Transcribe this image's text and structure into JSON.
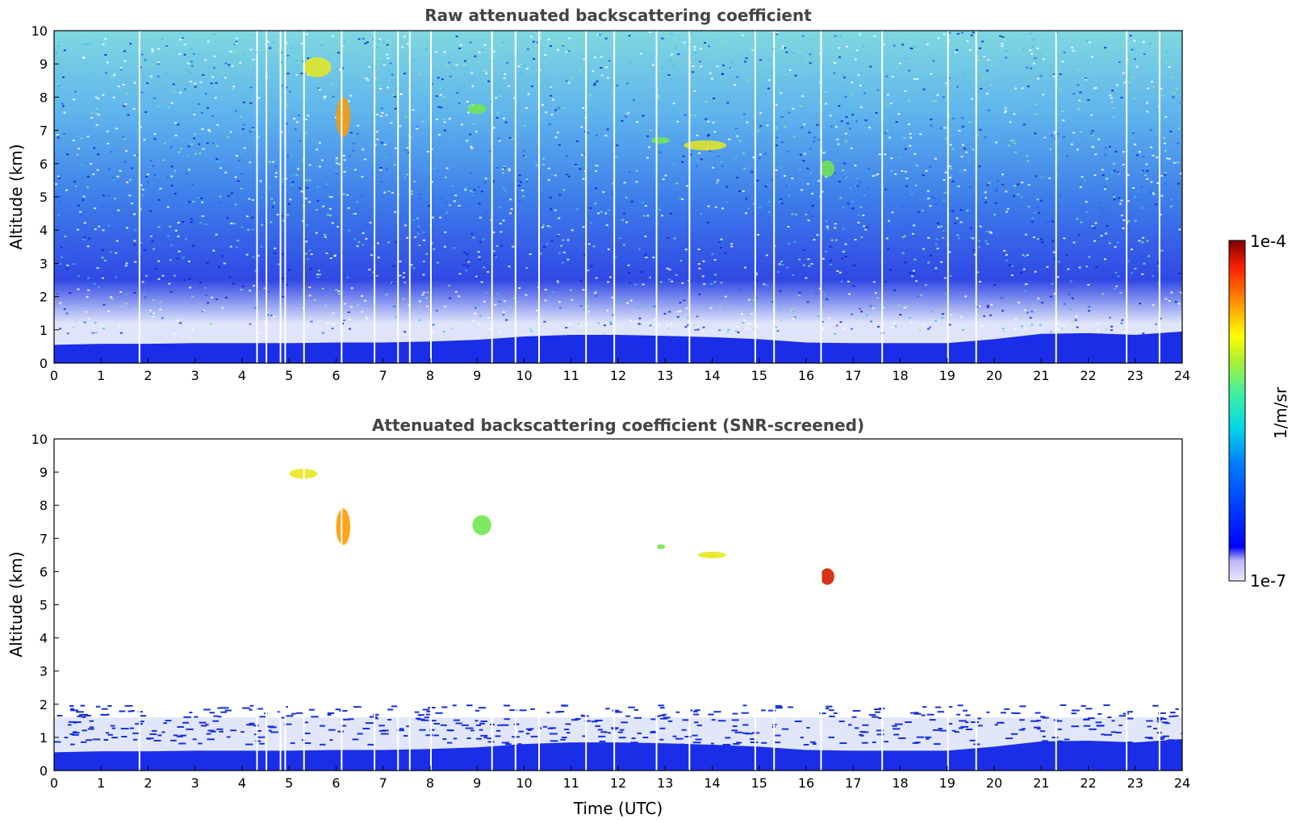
{
  "chart_data": [
    {
      "type": "heatmap",
      "title": "Raw attenuated backscattering coefficient",
      "xlabel": "",
      "ylabel": "Altitude (km)",
      "xlim": [
        0,
        24
      ],
      "ylim": [
        0,
        10
      ],
      "xticks": [
        "0",
        "1",
        "2",
        "3",
        "4",
        "5",
        "6",
        "7",
        "8",
        "9",
        "10",
        "11",
        "12",
        "13",
        "14",
        "15",
        "16",
        "17",
        "18",
        "19",
        "20",
        "21",
        "22",
        "23",
        "24"
      ],
      "yticks": [
        "0",
        "1",
        "2",
        "3",
        "4",
        "5",
        "6",
        "7",
        "8",
        "9",
        "10"
      ],
      "boundary_layer_top_km": [
        [
          0,
          0.55
        ],
        [
          1,
          0.58
        ],
        [
          2,
          0.58
        ],
        [
          3,
          0.6
        ],
        [
          4,
          0.6
        ],
        [
          5,
          0.6
        ],
        [
          6,
          0.62
        ],
        [
          7,
          0.62
        ],
        [
          8,
          0.65
        ],
        [
          9,
          0.7
        ],
        [
          10,
          0.8
        ],
        [
          11,
          0.85
        ],
        [
          12,
          0.85
        ],
        [
          13,
          0.82
        ],
        [
          14,
          0.78
        ],
        [
          15,
          0.72
        ],
        [
          16,
          0.62
        ],
        [
          17,
          0.6
        ],
        [
          18,
          0.6
        ],
        [
          19,
          0.6
        ],
        [
          20,
          0.72
        ],
        [
          21,
          0.88
        ],
        [
          22,
          0.9
        ],
        [
          23,
          0.85
        ],
        [
          24,
          0.95
        ]
      ],
      "cloud_features": [
        {
          "t0": 5.3,
          "t1": 5.9,
          "z0": 8.6,
          "z1": 9.2,
          "level": "yellow"
        },
        {
          "t0": 6.0,
          "t1": 6.3,
          "z0": 6.8,
          "z1": 8.0,
          "level": "orange"
        },
        {
          "t0": 8.8,
          "t1": 9.2,
          "z0": 7.5,
          "z1": 7.8,
          "level": "green"
        },
        {
          "t0": 12.7,
          "t1": 13.1,
          "z0": 6.6,
          "z1": 6.8,
          "level": "green"
        },
        {
          "t0": 13.4,
          "t1": 14.3,
          "z0": 6.4,
          "z1": 6.7,
          "level": "yellow"
        },
        {
          "t0": 16.3,
          "t1": 16.6,
          "z0": 5.6,
          "z1": 6.1,
          "level": "green"
        }
      ],
      "data_gaps_utc": [
        1.8,
        4.3,
        4.5,
        4.8,
        4.9,
        5.3,
        6.1,
        6.8,
        7.3,
        7.55,
        8.0,
        9.3,
        9.8,
        10.3,
        11.3,
        11.9,
        12.8,
        13.5,
        14.9,
        15.3,
        16.3,
        17.6,
        19.0,
        19.6,
        21.3,
        22.8,
        23.5
      ]
    },
    {
      "type": "heatmap",
      "title": "Attenuated backscattering coefficient (SNR-screened)",
      "xlabel": "Time (UTC)",
      "ylabel": "Altitude (km)",
      "xlim": [
        0,
        24
      ],
      "ylim": [
        0,
        10
      ],
      "xticks": [
        "0",
        "1",
        "2",
        "3",
        "4",
        "5",
        "6",
        "7",
        "8",
        "9",
        "10",
        "11",
        "12",
        "13",
        "14",
        "15",
        "16",
        "17",
        "18",
        "19",
        "20",
        "21",
        "22",
        "23",
        "24"
      ],
      "yticks": [
        "0",
        "1",
        "2",
        "3",
        "4",
        "5",
        "6",
        "7",
        "8",
        "9",
        "10"
      ],
      "screened_top_km": 1.6,
      "cloud_features": [
        {
          "t0": 5.0,
          "t1": 5.6,
          "z0": 8.8,
          "z1": 9.1,
          "level": "yellow"
        },
        {
          "t0": 6.0,
          "t1": 6.3,
          "z0": 6.8,
          "z1": 7.9,
          "level": "orange"
        },
        {
          "t0": 8.9,
          "t1": 9.3,
          "z0": 7.1,
          "z1": 7.7,
          "level": "green"
        },
        {
          "t0": 12.8,
          "t1": 13.0,
          "z0": 6.7,
          "z1": 6.8,
          "level": "green"
        },
        {
          "t0": 13.7,
          "t1": 14.3,
          "z0": 6.4,
          "z1": 6.6,
          "level": "yellow"
        },
        {
          "t0": 16.3,
          "t1": 16.6,
          "z0": 5.6,
          "z1": 6.1,
          "level": "red"
        }
      ]
    }
  ],
  "colorbar": {
    "label": "1/m/sr",
    "max_label": "1e-4",
    "min_label": "1e-7",
    "colormap": "jet",
    "range": [
      1e-07,
      0.0001
    ]
  }
}
